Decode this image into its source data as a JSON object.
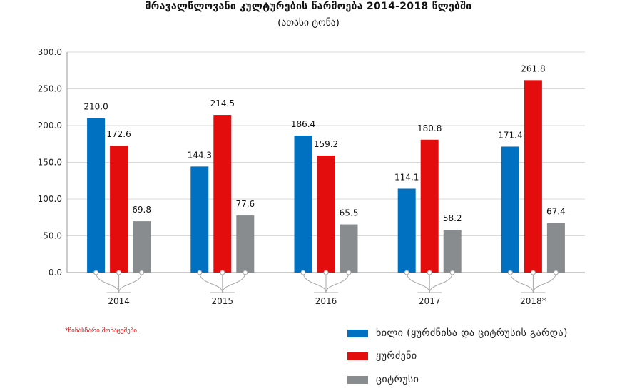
{
  "title": "მრავალწლოვანი კულტურების წარმოება 2014-2018 წლებში",
  "subtitle": "(ათასი ტონა)",
  "footnote": "*წინასწარი მონაცემები.",
  "chart_data": {
    "type": "bar",
    "categories": [
      "2014",
      "2015",
      "2016",
      "2017",
      "2018*"
    ],
    "series": [
      {
        "name": "ხილი (ყურძნისა და ციტრუსის გარდა)",
        "color": "#0070c0",
        "values": [
          210.0,
          144.3,
          186.4,
          114.1,
          171.4
        ],
        "labels": [
          "210.0",
          "144.3",
          "186.4",
          "114.1",
          "171.4"
        ]
      },
      {
        "name": "ყურძენი",
        "color": "#e30d0d",
        "values": [
          172.6,
          214.5,
          159.2,
          180.8,
          261.8
        ],
        "labels": [
          "172.6",
          "214.5",
          "159.2",
          "180.8",
          "261.8"
        ]
      },
      {
        "name": "ციტრუსი",
        "color": "#898c8f",
        "values": [
          69.8,
          77.6,
          65.5,
          58.2,
          67.4
        ],
        "labels": [
          "69.8",
          "77.6",
          "65.5",
          "58.2",
          "67.4"
        ]
      }
    ],
    "yticks": [
      "0.0",
      "50.0",
      "100.0",
      "150.0",
      "200.0",
      "250.0",
      "300.0"
    ],
    "ylim": [
      0,
      300
    ],
    "grid": true,
    "legend_position": "bottom-right"
  }
}
